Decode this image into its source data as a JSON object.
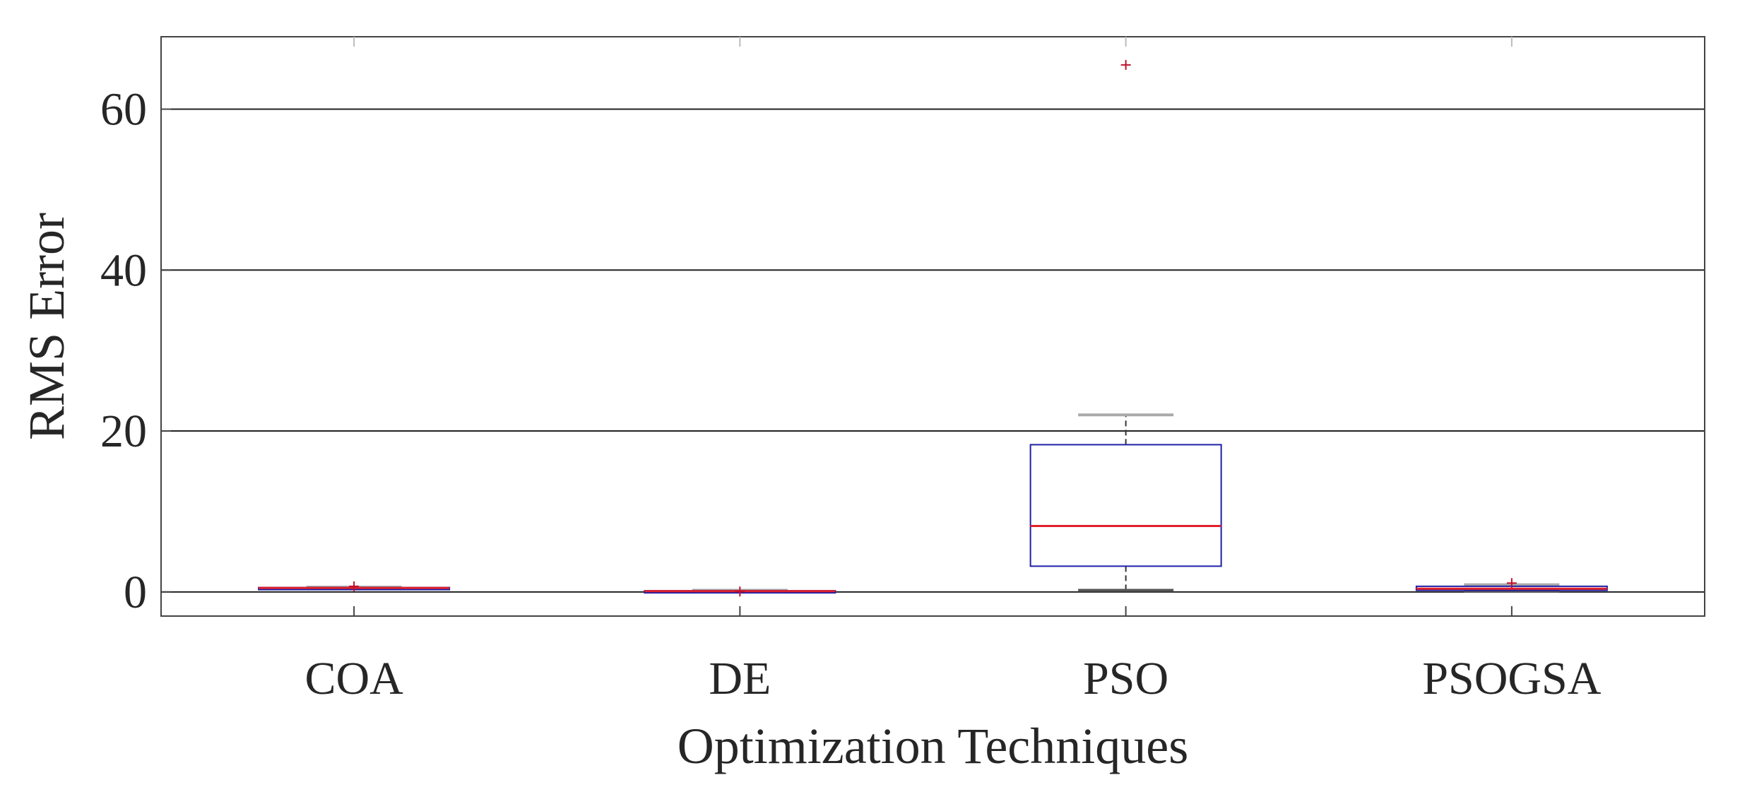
{
  "chart_data": {
    "type": "box",
    "title": "",
    "xlabel": "Optimization Techniques",
    "ylabel": "RMS Error",
    "ylim": [
      -3,
      69
    ],
    "yticks": [
      0,
      20,
      40,
      60
    ],
    "grid": "horizontal",
    "categories": [
      "COA",
      "DE",
      "PSO",
      "PSOGSA"
    ],
    "boxes": [
      {
        "category": "COA",
        "whisker_low": 0.4,
        "q1": 0.45,
        "median": 0.5,
        "q3": 0.55,
        "whisker_high": 0.6,
        "outliers": [
          0.7
        ]
      },
      {
        "category": "DE",
        "whisker_low": 0.0,
        "q1": 0.05,
        "median": 0.1,
        "q3": 0.15,
        "whisker_high": 0.2,
        "outliers": [
          0.05
        ]
      },
      {
        "category": "PSO",
        "whisker_low": 0.2,
        "q1": 3.2,
        "median": 8.2,
        "q3": 18.3,
        "whisker_high": 22,
        "outliers": [
          65.5
        ]
      },
      {
        "category": "PSOGSA",
        "whisker_low": 0.1,
        "q1": 0.2,
        "median": 0.4,
        "q3": 0.7,
        "whisker_high": 0.9,
        "outliers": [
          1.1
        ]
      }
    ],
    "colors": {
      "box": "#1f1fa8",
      "median": "#e0202a",
      "whisker": "#333333",
      "cap": "#aaaaaa",
      "outlier": "#c0102a",
      "grid": "#222222",
      "axis": "#444444"
    }
  }
}
